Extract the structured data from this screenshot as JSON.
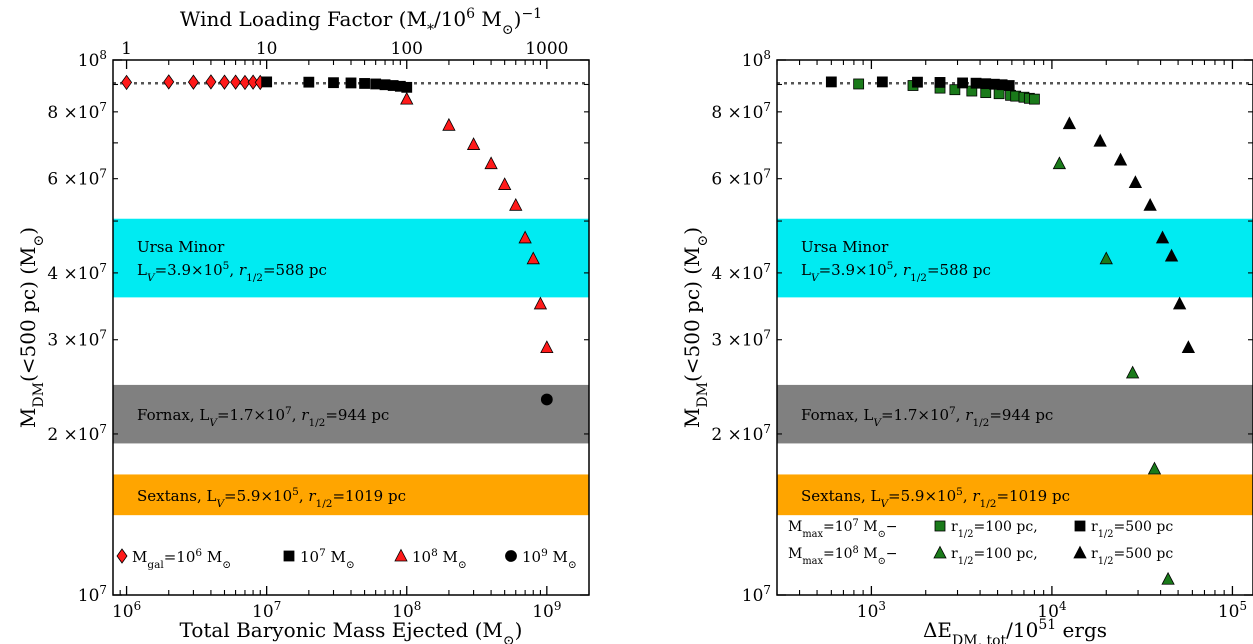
{
  "chart_data": [
    {
      "type": "scatter",
      "panel": "left",
      "top_axis_label": "Wind Loading Factor (M*/10^6 M☉)^-1",
      "top_ticks": [
        "1",
        "10",
        "100",
        "1000"
      ],
      "xlabel": "Total Baryonic Mass Ejected (M☉)",
      "ylabel": "M_DM(<500 pc) (M☉)",
      "x_scale": "log",
      "y_scale": "log",
      "xlim": [
        800000,
        2000000000
      ],
      "ylim": [
        10000000,
        100000000
      ],
      "x_ticks": [
        "10^6",
        "10^7",
        "10^8",
        "10^9"
      ],
      "y_ticks": [
        "10^7",
        "2×10^7",
        "3×10^7",
        "4×10^7",
        "6×10^7",
        "8×10^7",
        "10^8"
      ],
      "reference_line": 90500000,
      "bands": [
        {
          "name": "Ursa Minor",
          "text": "L_V=3.9×10^5, r_1/2=588 pc",
          "ymin": 36000000,
          "ymax": 50500000,
          "color": "#00ebf2"
        },
        {
          "name": "Fornax",
          "text": "Fornax, L_V=1.7×10^7, r_1/2=944 pc",
          "ymin": 19200000,
          "ymax": 24700000,
          "color": "#808080"
        },
        {
          "name": "Sextans",
          "text": "Sextans, L_V=5.9×10^5, r_1/2=1019 pc",
          "ymin": 14100000,
          "ymax": 16800000,
          "color": "#ffa500"
        }
      ],
      "series": [
        {
          "name": "M_gal=10^6 M☉",
          "marker": "diamond",
          "color": "#ff1a1a",
          "x": [
            1000000,
            2000000,
            3000000,
            4000000,
            5000000,
            6000000,
            7000000,
            8000000,
            9000000
          ],
          "y": [
            90800000,
            91000000,
            90900000,
            91000000,
            90900000,
            90900000,
            90800000,
            90900000,
            90800000
          ]
        },
        {
          "name": "10^7 M☉",
          "marker": "square",
          "color": "#000000",
          "x": [
            10000000,
            20000000,
            30000000,
            40000000,
            50000000,
            60000000,
            70000000,
            80000000,
            90000000,
            100000000
          ],
          "y": [
            91000000,
            90900000,
            90700000,
            90600000,
            90400000,
            90200000,
            89900000,
            89600000,
            89300000,
            88900000
          ]
        },
        {
          "name": "10^8 M☉",
          "marker": "triangle",
          "color": "#ff1a1a",
          "x": [
            100000000,
            200000000,
            300000000,
            400000000,
            500000000,
            600000000,
            700000000,
            800000000,
            900000000,
            1000000000
          ],
          "y": [
            84500000,
            75500000,
            69500000,
            64000000,
            58500000,
            53500000,
            46500000,
            42500000,
            35000000,
            29000000
          ]
        },
        {
          "name": "10^9 M☉",
          "marker": "circle",
          "color": "#000000",
          "x": [
            1000000000
          ],
          "y": [
            23200000
          ]
        }
      ]
    },
    {
      "type": "scatter",
      "panel": "right",
      "xlabel": "ΔE_DM, tot/10^51 ergs",
      "ylabel": "M_DM(<500 pc) (M☉)",
      "x_scale": "log",
      "y_scale": "log",
      "xlim": [
        300,
        130000
      ],
      "ylim": [
        10000000,
        100000000
      ],
      "x_ticks": [
        "10^3",
        "10^4",
        "10^5"
      ],
      "y_ticks": [
        "10^7",
        "2×10^7",
        "3×10^7",
        "4×10^7",
        "6×10^7",
        "8×10^7",
        "10^8"
      ],
      "reference_line": 90500000,
      "bands": [
        {
          "name": "Ursa Minor",
          "text": "L_V=3.9×10^5, r_1/2=588 pc",
          "ymin": 36000000,
          "ymax": 50500000,
          "color": "#00ebf2"
        },
        {
          "name": "Fornax",
          "text": "Fornax, L_V=1.7×10^7, r_1/2=944 pc",
          "ymin": 19200000,
          "ymax": 24700000,
          "color": "#808080"
        },
        {
          "name": "Sextans",
          "text": "Sextans, L_V=5.9×10^5, r_1/2=1019 pc",
          "ymin": 14100000,
          "ymax": 16800000,
          "color": "#ffa500"
        }
      ],
      "legend": {
        "row1_prefix": "M_max=10^7 M☉−",
        "row1_a": "r_1/2=100 pc,",
        "row1_b": "r_1/2=500 pc",
        "row2_prefix": "M_max=10^8 M☉−",
        "row2_a": "r_1/2=100 pc,",
        "row2_b": "r_1/2=500 pc"
      },
      "series": [
        {
          "name": "M_max=10^7 M☉, r_1/2=100 pc",
          "marker": "square",
          "color": "#1a7a1a",
          "x": [
            850,
            1700,
            2400,
            2900,
            3600,
            4300,
            5100,
            5900,
            6300,
            7000,
            7500,
            8000
          ],
          "y": [
            90200000,
            89600000,
            88600000,
            88000000,
            87500000,
            86900000,
            86500000,
            85900000,
            85600000,
            85200000,
            84800000,
            84500000
          ]
        },
        {
          "name": "M_max=10^7 M☉, r_1/2=500 pc",
          "marker": "square",
          "color": "#000000",
          "x": [
            600,
            1150,
            1800,
            2400,
            3200,
            3800,
            4300,
            4800,
            5300,
            5800
          ],
          "y": [
            91000000,
            91000000,
            90900000,
            90800000,
            90600000,
            90500000,
            90300000,
            90100000,
            89900000,
            89600000
          ]
        },
        {
          "name": "M_max=10^8 M☉, r_1/2=100 pc",
          "marker": "triangle",
          "color": "#1a7a1a",
          "x": [
            11000,
            20000,
            28000,
            37000,
            44000
          ],
          "y": [
            64000000,
            42500000,
            26000000,
            17200000,
            10700000
          ]
        },
        {
          "name": "M_max=10^8 M☉, r_1/2=500 pc",
          "marker": "triangle",
          "color": "#000000",
          "x": [
            12500,
            18500,
            24000,
            29000,
            35000,
            41000,
            46000,
            51000,
            57000
          ],
          "y": [
            76000000,
            70500000,
            65000000,
            59000000,
            53500000,
            46500000,
            43000000,
            35000000,
            29000000
          ]
        }
      ]
    }
  ]
}
